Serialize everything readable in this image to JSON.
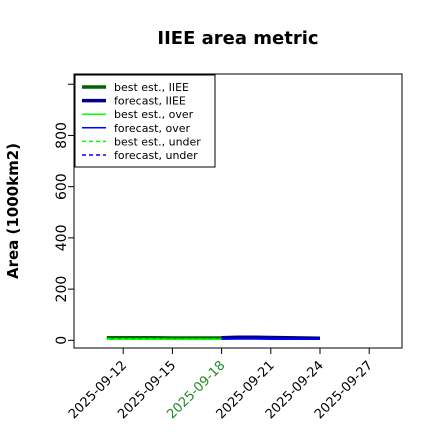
{
  "chart_data": {
    "type": "line",
    "title": "IIEE area metric",
    "xlabel": "",
    "ylabel": "Area (1000km2)",
    "x_ticks": [
      "2025-09-12",
      "2025-09-15",
      "2025-09-18",
      "2025-09-21",
      "2025-09-24",
      "2025-09-27"
    ],
    "highlight_tick": "2025-09-18",
    "highlight_color": "#228b22",
    "xlim": [
      "2025-09-09",
      "2025-09-29"
    ],
    "y_ticks": [
      0,
      200,
      400,
      600,
      800
    ],
    "ylim": [
      -30,
      1040
    ],
    "grid": false,
    "legend_position": "top-left",
    "series": [
      {
        "name": "best est., IIEE",
        "color": "#006400",
        "style": "solid",
        "width": "thick",
        "x": [
          "2025-09-11",
          "2025-09-12",
          "2025-09-13",
          "2025-09-14",
          "2025-09-15",
          "2025-09-16",
          "2025-09-17",
          "2025-09-18"
        ],
        "y": [
          10,
          10,
          10,
          10,
          9,
          9,
          9,
          9
        ]
      },
      {
        "name": "forecast, IIEE",
        "color": "#00008b",
        "style": "solid",
        "width": "thick",
        "x": [
          "2025-09-18",
          "2025-09-19",
          "2025-09-20",
          "2025-09-21",
          "2025-09-22",
          "2025-09-23",
          "2025-09-24"
        ],
        "y": [
          10,
          12,
          12,
          11,
          10,
          9,
          8
        ]
      },
      {
        "name": "best est., over",
        "color": "#00ff00",
        "style": "solid",
        "width": "thin",
        "x": [
          "2025-09-11",
          "2025-09-12",
          "2025-09-13",
          "2025-09-14",
          "2025-09-15",
          "2025-09-16",
          "2025-09-17",
          "2025-09-18"
        ],
        "y": [
          4,
          4,
          4,
          4,
          4,
          4,
          4,
          4
        ]
      },
      {
        "name": "forecast, over",
        "color": "#0000ff",
        "style": "solid",
        "width": "thin",
        "x": [
          "2025-09-18",
          "2025-09-19",
          "2025-09-20",
          "2025-09-21",
          "2025-09-22",
          "2025-09-23",
          "2025-09-24"
        ],
        "y": [
          4,
          5,
          5,
          4,
          4,
          4,
          4
        ]
      },
      {
        "name": "best est., under",
        "color": "#00ff00",
        "style": "dashed",
        "width": "thin",
        "x": [
          "2025-09-11",
          "2025-09-12",
          "2025-09-13",
          "2025-09-14",
          "2025-09-15",
          "2025-09-16",
          "2025-09-17",
          "2025-09-18"
        ],
        "y": [
          6,
          6,
          6,
          6,
          5,
          5,
          5,
          5
        ]
      },
      {
        "name": "forecast, under",
        "color": "#0000ff",
        "style": "dashed",
        "width": "thin",
        "x": [
          "2025-09-18",
          "2025-09-19",
          "2025-09-20",
          "2025-09-21",
          "2025-09-22",
          "2025-09-23",
          "2025-09-24"
        ],
        "y": [
          6,
          7,
          7,
          7,
          6,
          5,
          4
        ]
      }
    ]
  }
}
